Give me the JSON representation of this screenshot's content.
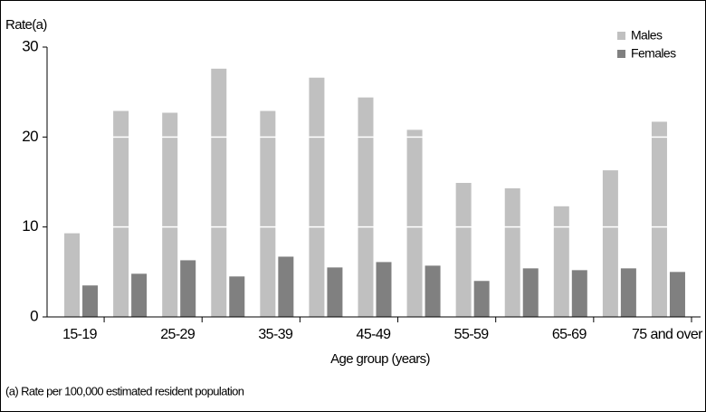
{
  "chart_data": {
    "type": "bar",
    "y_label": "Rate(a)",
    "x_label": "Age group (years)",
    "footnote": "(a) Rate per 100,000 estimated resident population",
    "categories": [
      "15-19",
      null,
      "25-29",
      null,
      "35-39",
      null,
      "45-49",
      null,
      "55-59",
      null,
      "65-69",
      null,
      "75 and over"
    ],
    "series": [
      {
        "name": "Males",
        "color": "#c0c0c0",
        "values": [
          9.3,
          22.9,
          22.7,
          27.6,
          22.9,
          26.6,
          24.4,
          20.8,
          14.9,
          14.3,
          12.3,
          16.3,
          21.7
        ]
      },
      {
        "name": "Females",
        "color": "#808080",
        "values": [
          3.5,
          4.8,
          6.3,
          4.5,
          6.7,
          5.5,
          6.1,
          5.7,
          4.0,
          5.4,
          5.2,
          5.4,
          5.0
        ]
      }
    ],
    "ylim": [
      0,
      30
    ],
    "yticks": [
      0,
      10,
      20,
      30
    ],
    "grid": true,
    "legend": "top-right"
  }
}
